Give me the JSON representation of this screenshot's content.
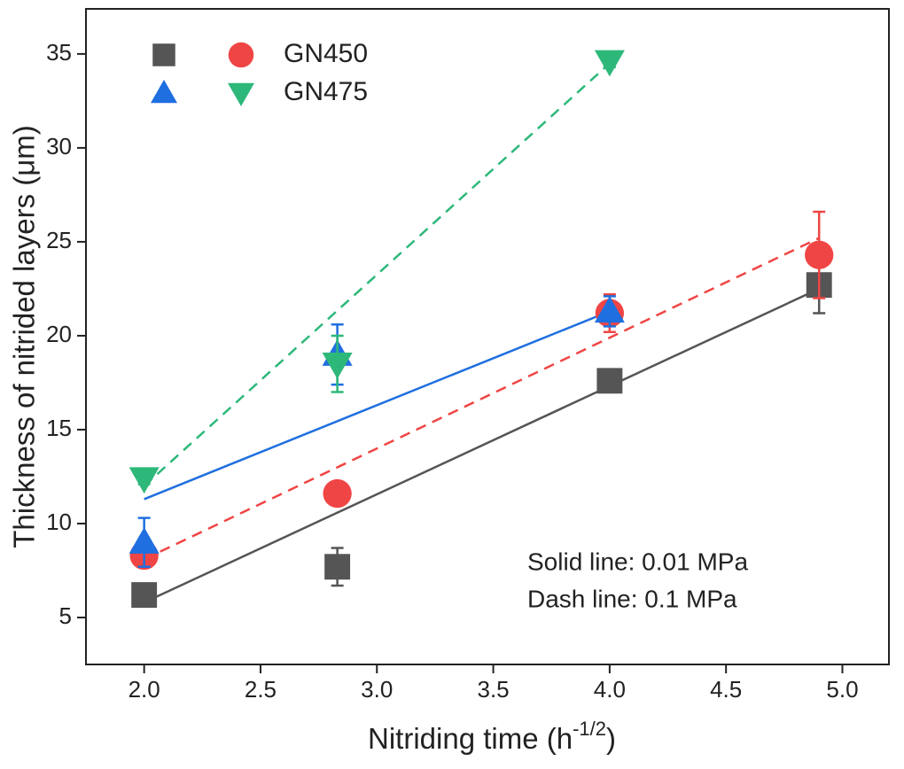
{
  "chart_data": {
    "type": "scatter",
    "x_label": {
      "text": "Nitriding time (h",
      "superscript": "-1/2",
      "suffix": ")"
    },
    "y_label": "Thickness of nitrided layers (μm)",
    "annotations": [
      "Solid line: 0.01 MPa",
      "Dash line: 0.1 MPa"
    ],
    "xlim": [
      1.75,
      5.2
    ],
    "ylim": [
      2.5,
      37.4
    ],
    "xticks": [
      {
        "value": 2,
        "label": "2.0"
      },
      {
        "value": 2.5,
        "label": "2.5"
      },
      {
        "value": 3,
        "label": "3.0"
      },
      {
        "value": 3.5,
        "label": "3.5"
      },
      {
        "value": 4,
        "label": "4.0"
      },
      {
        "value": 4.5,
        "label": "4.5"
      },
      {
        "value": 5,
        "label": "5.0"
      }
    ],
    "yticks": [
      5,
      10,
      15,
      20,
      25,
      30,
      35
    ],
    "series": [
      {
        "name": null,
        "marker": "square",
        "color": "#555555",
        "x": [
          2.0,
          2.83,
          4.0,
          4.9
        ],
        "values": [
          6.2,
          7.7,
          17.6,
          22.7
        ],
        "errors": [
          0,
          1.0,
          0,
          1.5
        ],
        "linestyle": "solid",
        "fit_x": [
          2.0,
          4.9
        ],
        "fit_y": [
          5.8,
          22.5
        ]
      },
      {
        "name": "GN450",
        "marker": "circle",
        "color": "#f04545",
        "x": [
          2.0,
          2.83,
          4.0,
          4.9
        ],
        "values": [
          8.3,
          11.6,
          21.2,
          24.3
        ],
        "errors": [
          0.4,
          0.6,
          1.0,
          2.3
        ],
        "linestyle": "dashed",
        "fit_x": [
          2.0,
          4.9
        ],
        "fit_y": [
          8.1,
          25.2
        ]
      },
      {
        "name": null,
        "marker": "triangle-up",
        "color": "#1f6fe0",
        "x": [
          2.0,
          2.83,
          4.0
        ],
        "values": [
          9.0,
          19.0,
          21.3
        ],
        "errors": [
          1.3,
          1.6,
          0.8
        ],
        "linestyle": "solid",
        "fit_x": [
          2.0,
          4.0
        ],
        "fit_y": [
          11.3,
          21.3
        ]
      },
      {
        "name": "GN475",
        "marker": "triangle-down",
        "color": "#2db87a",
        "x": [
          2.0,
          2.83,
          4.0
        ],
        "values": [
          12.4,
          18.5,
          34.6
        ],
        "errors": [
          0.3,
          1.5,
          0.3
        ],
        "linestyle": "dashed",
        "fit_x": [
          2.0,
          4.0
        ],
        "fit_y": [
          12.0,
          34.5
        ]
      }
    ]
  }
}
